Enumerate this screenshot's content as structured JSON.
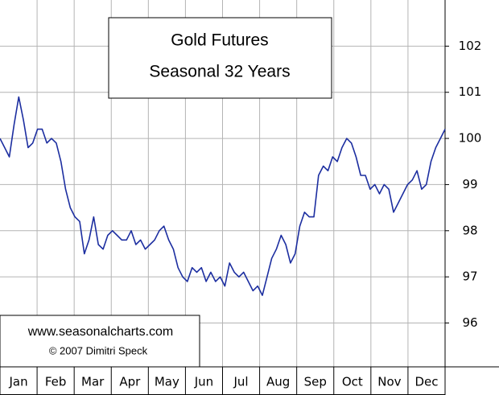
{
  "chart_data": {
    "type": "line",
    "title": "Gold Futures",
    "subtitle": "Seasonal 32 Years",
    "annotations": [
      "www.seasonalcharts.com",
      "© 2007  Dimitri Speck"
    ],
    "categories": [
      "Jan",
      null,
      null,
      null,
      null,
      null,
      null,
      null,
      "Feb",
      null,
      null,
      null,
      null,
      null,
      null,
      null,
      "Mar",
      null,
      null,
      null,
      null,
      null,
      null,
      null,
      "Apr",
      null,
      null,
      null,
      null,
      null,
      null,
      null,
      "May",
      null,
      null,
      null,
      null,
      null,
      null,
      null,
      "Jun",
      null,
      null,
      null,
      null,
      null,
      null,
      null,
      "Jul",
      null,
      null,
      null,
      null,
      null,
      null,
      null,
      "Aug",
      null,
      null,
      null,
      null,
      null,
      null,
      null,
      "Sep",
      null,
      null,
      null,
      null,
      null,
      null,
      null,
      "Oct",
      null,
      null,
      null,
      null,
      null,
      null,
      null,
      "Nov",
      null,
      null,
      null,
      null,
      null,
      null,
      null,
      "Dec",
      null,
      null,
      null,
      null,
      null,
      null,
      null
    ],
    "series": [
      {
        "color": "#1c2ea0",
        "values": [
          100.0,
          99.8,
          99.6,
          100.3,
          100.9,
          100.4,
          99.8,
          99.9,
          100.2,
          100.2,
          99.9,
          100.0,
          99.9,
          99.5,
          98.9,
          98.5,
          98.3,
          98.2,
          97.5,
          97.8,
          98.3,
          97.7,
          97.6,
          97.9,
          98.0,
          97.9,
          97.8,
          97.8,
          98.0,
          97.7,
          97.8,
          97.6,
          97.7,
          97.8,
          98.0,
          98.1,
          97.8,
          97.6,
          97.2,
          97.0,
          96.9,
          97.2,
          97.1,
          97.2,
          96.9,
          97.1,
          96.9,
          97.0,
          96.8,
          97.3,
          97.1,
          97.0,
          97.1,
          96.9,
          96.7,
          96.8,
          96.6,
          97.0,
          97.4,
          97.6,
          97.9,
          97.7,
          97.3,
          97.5,
          98.1,
          98.4,
          98.3,
          98.3,
          99.2,
          99.4,
          99.3,
          99.6,
          99.5,
          99.8,
          100.0,
          99.9,
          99.6,
          99.2,
          99.2,
          98.9,
          99.0,
          98.8,
          99.0,
          98.9,
          98.4,
          98.6,
          98.8,
          99.0,
          99.1,
          99.3,
          98.9,
          99.0,
          99.5,
          99.8,
          100.0,
          100.2
        ]
      }
    ],
    "ylim": [
      95.05,
      103.0
    ],
    "yticks": [
      96,
      97,
      98,
      99,
      100,
      101,
      102
    ],
    "grid": true
  }
}
